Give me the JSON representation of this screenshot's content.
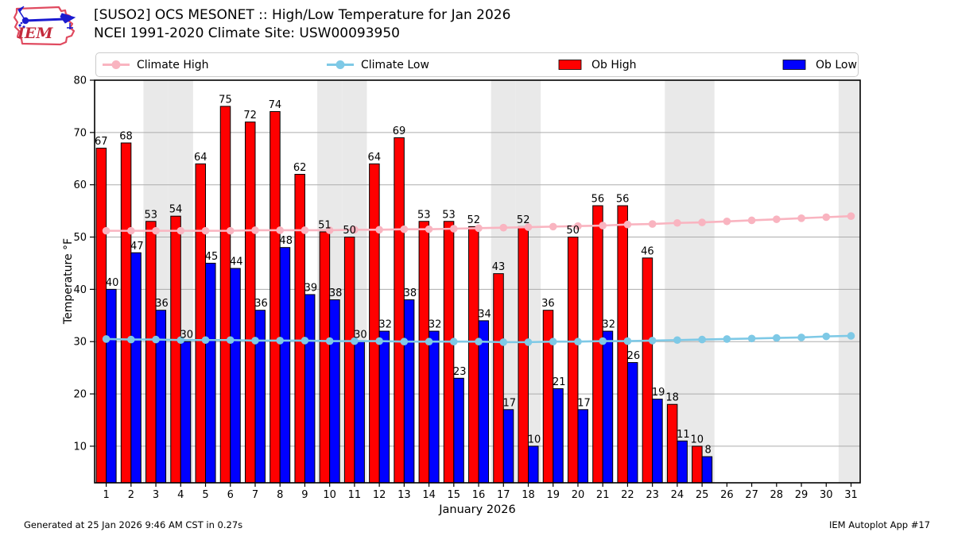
{
  "header": {
    "title_line1": "[SUSO2] OCS MESONET :: High/Low Temperature for Jan 2026",
    "title_line2": "NCEI 1991-2020 Climate Site: USW00093950",
    "logo_text": "IEM"
  },
  "legend": {
    "items": [
      {
        "label": "Climate High",
        "type": "line",
        "color": "#F9B4C0"
      },
      {
        "label": "Climate Low",
        "type": "line",
        "color": "#7EC9E6"
      },
      {
        "label": "Ob High",
        "type": "swatch",
        "color": "#FF0000"
      },
      {
        "label": "Ob Low",
        "type": "swatch",
        "color": "#0000FF"
      }
    ]
  },
  "chart_data": {
    "type": "bar",
    "title": "[SUSO2] OCS MESONET :: High/Low Temperature for Jan 2026",
    "subtitle": "NCEI 1991-2020 Climate Site: USW00093950",
    "xlabel": "January 2026",
    "ylabel": "Temperature °F",
    "ylim": [
      3,
      80
    ],
    "yticks": [
      10,
      20,
      30,
      40,
      50,
      60,
      70,
      80
    ],
    "days": [
      1,
      2,
      3,
      4,
      5,
      6,
      7,
      8,
      9,
      10,
      11,
      12,
      13,
      14,
      15,
      16,
      17,
      18,
      19,
      20,
      21,
      22,
      23,
      24,
      25,
      26,
      27,
      28,
      29,
      30,
      31
    ],
    "weekend_days": [
      3,
      4,
      10,
      11,
      17,
      18,
      24,
      25,
      31
    ],
    "grid": true,
    "legend_position": "top",
    "series": [
      {
        "name": "Ob High",
        "type": "bar",
        "color": "#FF0000",
        "values": [
          67,
          68,
          53,
          54,
          64,
          75,
          72,
          74,
          62,
          51,
          50,
          64,
          69,
          53,
          53,
          52,
          43,
          52,
          36,
          50,
          56,
          56,
          46,
          18,
          10,
          null,
          null,
          null,
          null,
          null,
          null
        ]
      },
      {
        "name": "Ob Low",
        "type": "bar",
        "color": "#0000FF",
        "values": [
          40,
          47,
          36,
          30,
          45,
          44,
          36,
          48,
          39,
          38,
          30,
          32,
          38,
          32,
          23,
          34,
          17,
          10,
          21,
          17,
          32,
          26,
          19,
          11,
          8,
          null,
          null,
          null,
          null,
          null,
          null
        ]
      },
      {
        "name": "Climate High",
        "type": "line",
        "color": "#F9B4C0",
        "values": [
          51.2,
          51.2,
          51.2,
          51.2,
          51.2,
          51.2,
          51.3,
          51.3,
          51.3,
          51.3,
          51.4,
          51.4,
          51.5,
          51.5,
          51.6,
          51.7,
          51.8,
          51.9,
          52.0,
          52.1,
          52.2,
          52.4,
          52.5,
          52.7,
          52.8,
          53.0,
          53.2,
          53.4,
          53.6,
          53.8,
          54.0
        ]
      },
      {
        "name": "Climate Low",
        "type": "line",
        "color": "#7EC9E6",
        "values": [
          30.5,
          30.4,
          30.4,
          30.3,
          30.3,
          30.3,
          30.2,
          30.2,
          30.2,
          30.1,
          30.1,
          30.1,
          30.0,
          30.0,
          30.0,
          30.0,
          29.9,
          29.9,
          30.0,
          30.0,
          30.1,
          30.1,
          30.2,
          30.3,
          30.4,
          30.5,
          30.6,
          30.7,
          30.8,
          31.0,
          31.1
        ]
      }
    ],
    "style": {
      "weekend_band_color": "#E9E9E9",
      "gridline_color": "#ADADAD",
      "bar_edge_color": "#000000",
      "background": "#FFFFFF"
    }
  },
  "footer": {
    "left": "Generated at 25 Jan 2026 9:46 AM CST in 0.27s",
    "right": "IEM Autoplot App #17"
  }
}
